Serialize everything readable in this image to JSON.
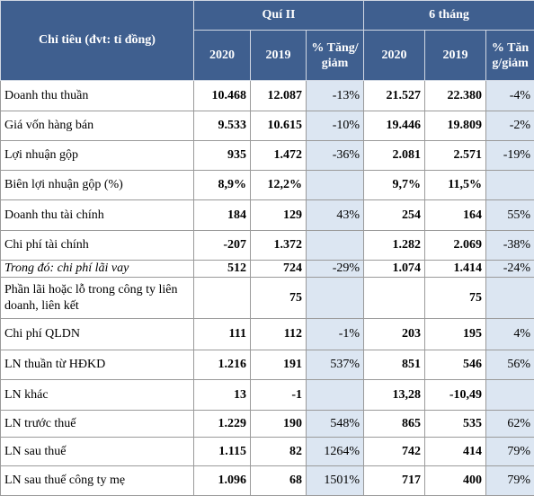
{
  "table": {
    "header": {
      "label": "Chỉ tiêu (đvt: tỉ đồng)",
      "groups": [
        "Quí II",
        "6 tháng"
      ],
      "columns": [
        "2020",
        "2019",
        "% Tăng/giảm",
        "2020",
        "2019",
        "% Tăng/giảm"
      ]
    },
    "rows": [
      [
        "Doanh thu thuần",
        "10.468",
        "12.087",
        "-13%",
        "21.527",
        "22.380",
        "-4%"
      ],
      [
        "Giá vốn hàng bán",
        "9.533",
        "10.615",
        "-10%",
        "19.446",
        "19.809",
        "-2%"
      ],
      [
        "Lợi nhuận gộp",
        "935",
        "1.472",
        "-36%",
        "2.081",
        "2.571",
        "-19%"
      ],
      [
        "Biên lợi nhuận gộp (%)",
        "8,9%",
        "12,2%",
        null,
        "9,7%",
        "11,5%",
        null
      ],
      [
        "Doanh thu tài chính",
        "184",
        "129",
        "43%",
        "254",
        "164",
        "55%"
      ],
      [
        "Chi phí tài chính",
        "-207",
        "1.372",
        null,
        "1.282",
        "2.069",
        "-38%"
      ],
      [
        "Trong đó: chi phí lãi vay",
        "512",
        "724",
        "-29%",
        "1.074",
        "1.414",
        "-24%"
      ],
      [
        "Phần lãi hoặc lỗ trong công ty liên doanh, liên kết",
        null,
        "75",
        null,
        null,
        "75",
        null
      ],
      [
        "Chi phí QLDN",
        "111",
        "112",
        "-1%",
        "203",
        "195",
        "4%"
      ],
      [
        "LN thuần từ HĐKD",
        "1.216",
        "191",
        "537%",
        "851",
        "546",
        "56%"
      ],
      [
        "LN khác",
        "13",
        "-1",
        null,
        "13,28",
        "-10,49",
        null
      ],
      [
        "LN trước thuế",
        "1.229",
        "190",
        "548%",
        "865",
        "535",
        "62%"
      ],
      [
        "LN sau thuế",
        "1.115",
        "82",
        "1264%",
        "742",
        "414",
        "79%"
      ],
      [
        "LN sau thuế công ty mẹ",
        "1.096",
        "68",
        "1501%",
        "717",
        "400",
        "79%"
      ]
    ]
  }
}
